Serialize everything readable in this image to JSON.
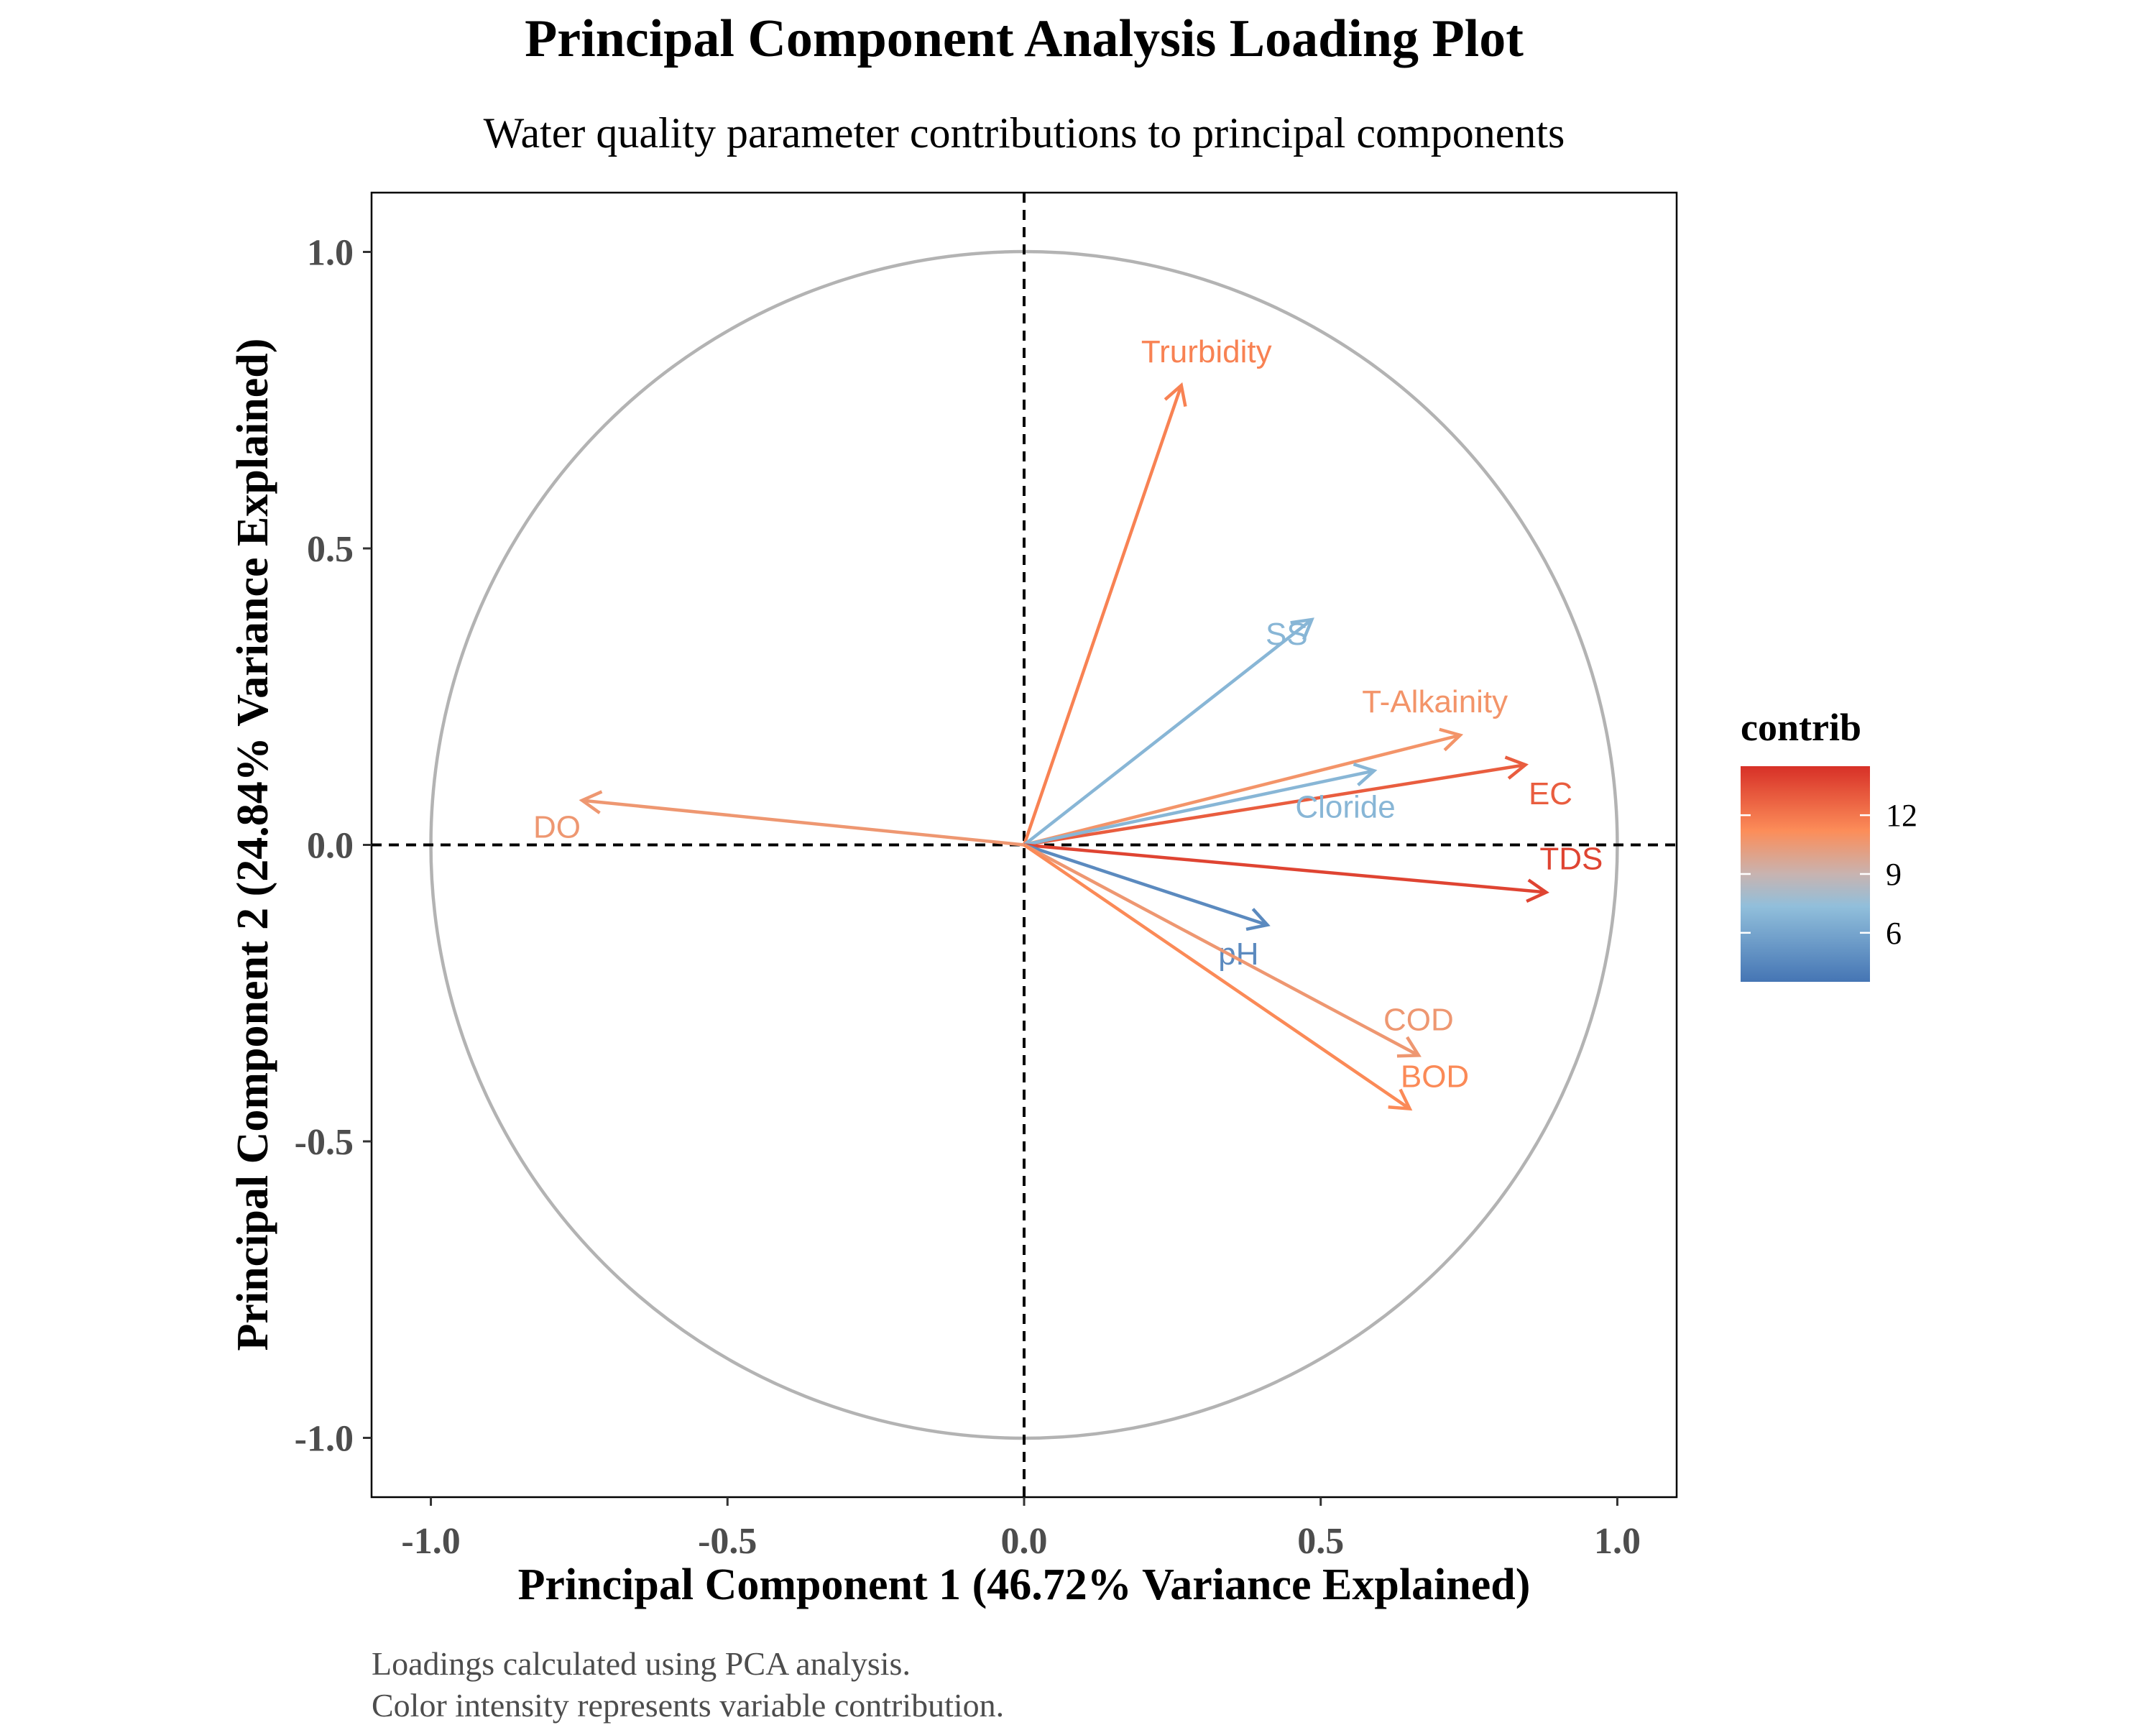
{
  "chart_data": {
    "type": "scatter",
    "subtype": "pca-loading-biplot",
    "title": "Principal Component Analysis Loading Plot",
    "subtitle": "Water quality parameter contributions to principal components",
    "xlabel": "Principal Component 1 (46.72% Variance Explained)",
    "ylabel": "Principal Component 2 (24.84% Variance Explained)",
    "xlim": [
      -1.1,
      1.1
    ],
    "ylim": [
      -1.1,
      1.1
    ],
    "xticks": [
      "-1.0",
      "-0.5",
      "0.0",
      "0.5",
      "1.0"
    ],
    "yticks": [
      "-1.0",
      "-0.5",
      "0.0",
      "0.5",
      "1.0"
    ],
    "grid": false,
    "unit_circle": true,
    "reference_lines": [
      "x = 0",
      "y = 0"
    ],
    "variables": [
      {
        "label": "Trurbidity",
        "x": 0.265,
        "y": 0.775,
        "contrib": 11.6
      },
      {
        "label": "SS",
        "x": 0.485,
        "y": 0.38,
        "contrib": 6.9
      },
      {
        "label": "T-Alkainity",
        "x": 0.735,
        "y": 0.185,
        "contrib": 10.8
      },
      {
        "label": "EC",
        "x": 0.845,
        "y": 0.135,
        "contrib": 12.9
      },
      {
        "label": "Cloride",
        "x": 0.59,
        "y": 0.125,
        "contrib": 6.9
      },
      {
        "label": "DO",
        "x": -0.745,
        "y": 0.075,
        "contrib": 10.6
      },
      {
        "label": "TDS",
        "x": 0.88,
        "y": -0.08,
        "contrib": 13.8
      },
      {
        "label": "pH",
        "x": 0.41,
        "y": -0.135,
        "contrib": 4.6
      },
      {
        "label": "COD",
        "x": 0.665,
        "y": -0.355,
        "contrib": 10.6
      },
      {
        "label": "BOD",
        "x": 0.65,
        "y": -0.445,
        "contrib": 11.3
      }
    ],
    "legend": {
      "title": "contrib",
      "position": "right",
      "ticks": [
        "12",
        "9",
        "6"
      ],
      "range": [
        3.5,
        14.5
      ],
      "colors": {
        "low": "#4575b4",
        "mid_low": "#91bfdb",
        "mid": "#c8b3b0",
        "mid_high": "#fc8d59",
        "high": "#d73027"
      }
    },
    "caption_lines": [
      "Loadings calculated using PCA analysis.",
      "Color intensity represents variable contribution."
    ]
  }
}
